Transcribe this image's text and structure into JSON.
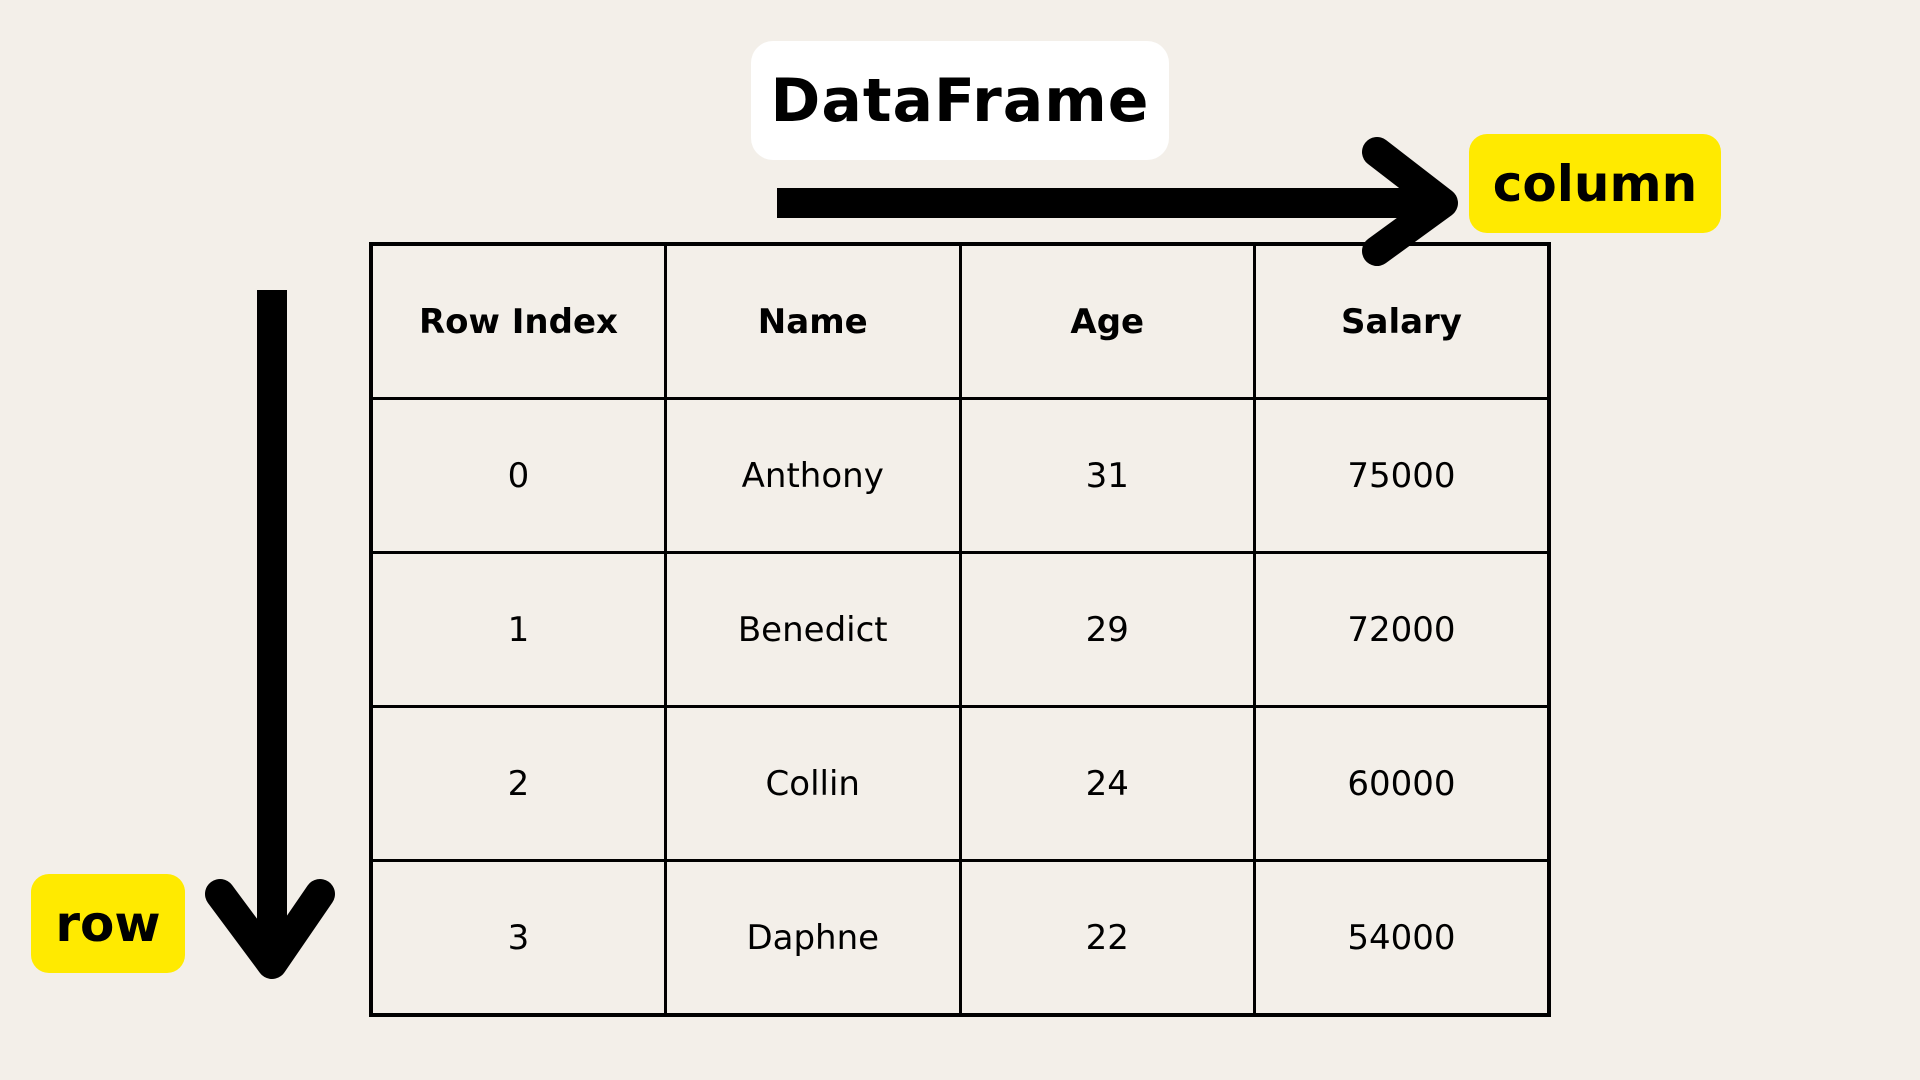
{
  "title": "DataFrame",
  "labels": {
    "column": "column",
    "row": "row"
  },
  "colors": {
    "background": "#f3efe9",
    "highlight": "#ffea00",
    "title_box": "#ffffff",
    "line": "#000000"
  },
  "icons": {
    "column_arrow": "arrow-right-icon",
    "row_arrow": "arrow-down-icon"
  },
  "table": {
    "headers": [
      "Row Index",
      "Name",
      "Age",
      "Salary"
    ],
    "rows": [
      [
        "0",
        "Anthony",
        "31",
        "75000"
      ],
      [
        "1",
        "Benedict",
        "29",
        "72000"
      ],
      [
        "2",
        "Collin",
        "24",
        "60000"
      ],
      [
        "3",
        "Daphne",
        "22",
        "54000"
      ]
    ]
  }
}
